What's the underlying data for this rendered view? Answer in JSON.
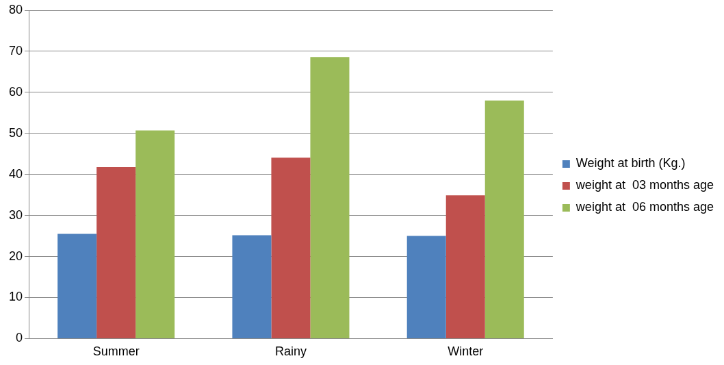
{
  "chart_data": {
    "type": "bar",
    "categories": [
      "Summer",
      "Rainy",
      "Winter"
    ],
    "series": [
      {
        "name": "Weight at birth (Kg.)",
        "color": "#4f81bd",
        "values": [
          25.5,
          25.2,
          25.0
        ]
      },
      {
        "name": "weight at  03 months age",
        "color": "#c0504d",
        "values": [
          41.8,
          44.1,
          34.9
        ]
      },
      {
        "name": "weight at  06 months age",
        "color": "#9bbb59",
        "values": [
          50.7,
          68.6,
          58.0
        ]
      }
    ],
    "ylim": [
      0,
      80
    ],
    "yticks": [
      0,
      10,
      20,
      30,
      40,
      50,
      60,
      70,
      80
    ],
    "grid": "y",
    "legend": "right"
  }
}
